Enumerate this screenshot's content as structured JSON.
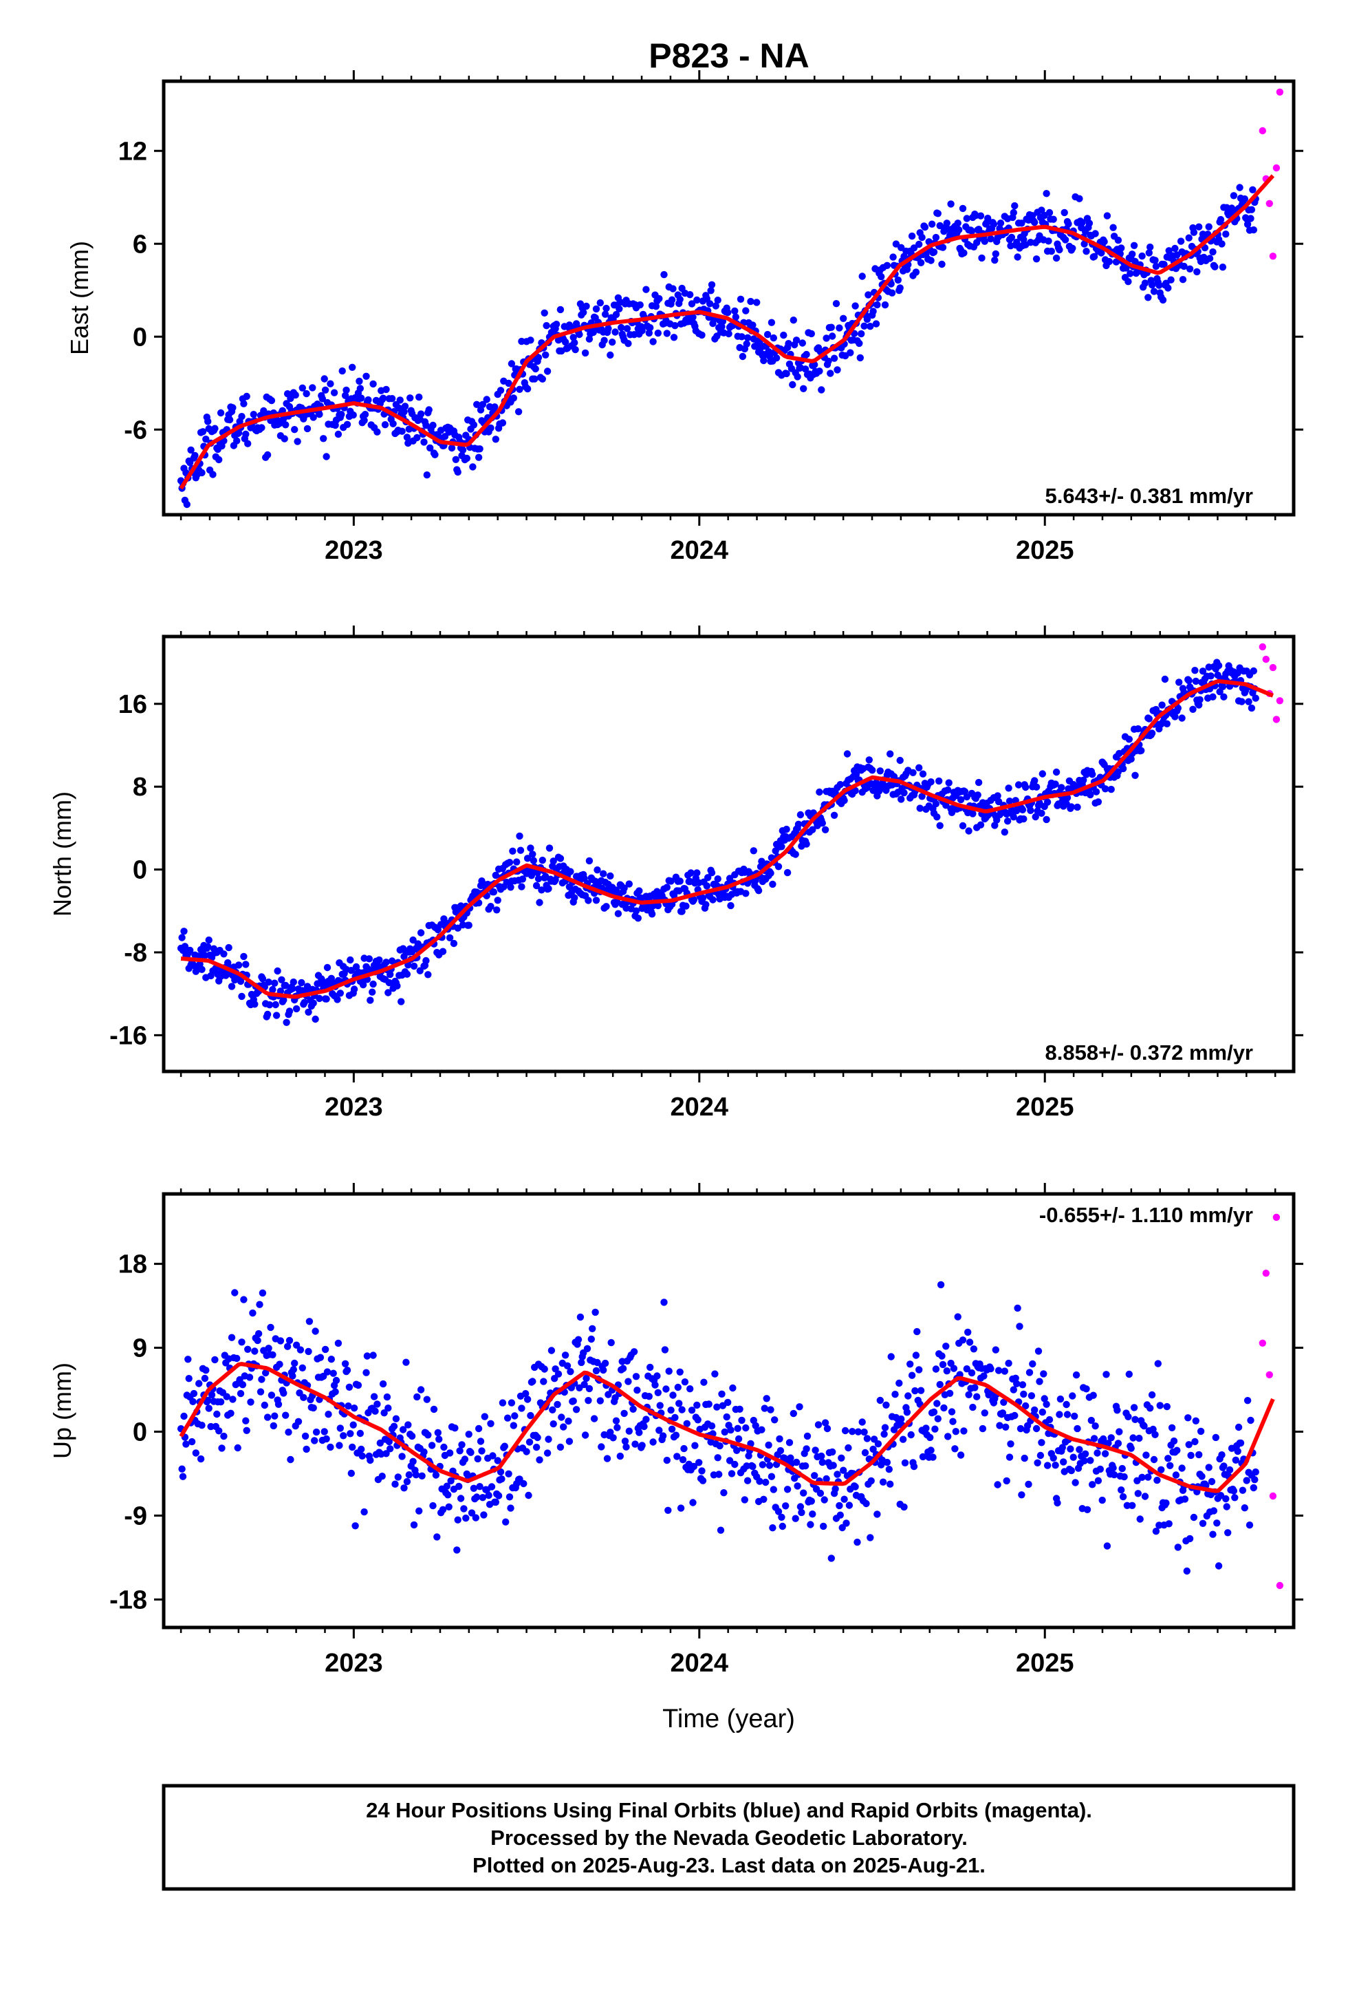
{
  "chart_data": [
    {
      "type": "scatter",
      "title": "P823 - NA",
      "ylabel": "East (mm)",
      "xlim": [
        2022.45,
        2025.72
      ],
      "ylim": [
        -11.5,
        16.5
      ],
      "yticks": [
        -6,
        0,
        6,
        12
      ],
      "xticks": [
        2023,
        2024,
        2025
      ],
      "xtick_labels": [
        "2023",
        "2024",
        "2025"
      ],
      "rate_text": "5.643+/- 0.381 mm/yr",
      "rate_position": "bottom-right",
      "grid": false,
      "series": [
        {
          "name": "Final Orbits",
          "color": "#0000ff",
          "x": [
            2022.5,
            2022.58,
            2022.67,
            2022.75,
            2022.83,
            2022.92,
            2023.0,
            2023.08,
            2023.17,
            2023.25,
            2023.33,
            2023.42,
            2023.5,
            2023.58,
            2023.67,
            2023.75,
            2023.83,
            2023.92,
            2024.0,
            2024.08,
            2024.17,
            2024.25,
            2024.33,
            2024.42,
            2024.5,
            2024.58,
            2024.67,
            2024.75,
            2024.83,
            2024.92,
            2025.0,
            2025.08,
            2025.17,
            2025.25,
            2025.33,
            2025.42,
            2025.5,
            2025.58
          ],
          "y": [
            -9.5,
            -6.8,
            -5.6,
            -5.2,
            -4.9,
            -4.6,
            -4.3,
            -4.5,
            -5.6,
            -6.7,
            -7.0,
            -4.9,
            -1.6,
            0.0,
            0.6,
            0.9,
            1.1,
            1.4,
            1.6,
            1.2,
            0.1,
            -1.3,
            -1.6,
            -0.2,
            2.3,
            4.6,
            5.9,
            6.4,
            6.6,
            6.9,
            7.1,
            6.7,
            5.7,
            4.6,
            4.1,
            5.3,
            6.8,
            8.4
          ]
        },
        {
          "name": "Rapid Orbits",
          "color": "#ff00ff",
          "x": [
            2025.63,
            2025.64,
            2025.65,
            2025.66,
            2025.67,
            2025.68
          ],
          "y": [
            13.3,
            10.2,
            8.6,
            5.2,
            10.9,
            15.8
          ]
        },
        {
          "name": "Model",
          "type": "line",
          "color": "#ff0000",
          "x": [
            2022.5,
            2022.58,
            2022.67,
            2022.75,
            2022.83,
            2022.92,
            2023.0,
            2023.08,
            2023.17,
            2023.25,
            2023.33,
            2023.42,
            2023.5,
            2023.58,
            2023.67,
            2023.75,
            2023.83,
            2023.92,
            2024.0,
            2024.08,
            2024.17,
            2024.25,
            2024.33,
            2024.42,
            2024.5,
            2024.58,
            2024.67,
            2024.75,
            2024.83,
            2024.92,
            2025.0,
            2025.08,
            2025.17,
            2025.25,
            2025.33,
            2025.42,
            2025.5,
            2025.58,
            2025.66
          ],
          "y": [
            -9.8,
            -7.0,
            -5.8,
            -5.2,
            -4.9,
            -4.6,
            -4.3,
            -4.6,
            -5.7,
            -6.8,
            -7.0,
            -4.8,
            -1.6,
            0.0,
            0.6,
            0.9,
            1.1,
            1.4,
            1.6,
            1.2,
            0.1,
            -1.3,
            -1.6,
            -0.2,
            2.3,
            4.6,
            5.9,
            6.4,
            6.6,
            6.9,
            7.1,
            6.7,
            5.7,
            4.6,
            4.1,
            5.3,
            6.8,
            8.4,
            10.4
          ]
        }
      ]
    },
    {
      "type": "scatter",
      "ylabel": "North (mm)",
      "xlim": [
        2022.45,
        2025.72
      ],
      "ylim": [
        -19.5,
        22.5
      ],
      "yticks": [
        -16,
        -8,
        0,
        8,
        16
      ],
      "xticks": [
        2023,
        2024,
        2025
      ],
      "xtick_labels": [
        "2023",
        "2024",
        "2025"
      ],
      "rate_text": "8.858+/- 0.372 mm/yr",
      "rate_position": "bottom-right",
      "grid": false,
      "series": [
        {
          "name": "Final Orbits",
          "color": "#0000ff",
          "x": [
            2022.5,
            2022.58,
            2022.67,
            2022.75,
            2022.83,
            2022.92,
            2023.0,
            2023.08,
            2023.17,
            2023.25,
            2023.33,
            2023.42,
            2023.5,
            2023.58,
            2023.67,
            2023.75,
            2023.83,
            2023.92,
            2024.0,
            2024.08,
            2024.17,
            2024.25,
            2024.33,
            2024.42,
            2024.5,
            2024.58,
            2024.67,
            2024.75,
            2024.83,
            2024.92,
            2025.0,
            2025.08,
            2025.17,
            2025.25,
            2025.33,
            2025.42,
            2025.5,
            2025.58
          ],
          "y": [
            -8.4,
            -8.6,
            -10.0,
            -12.0,
            -12.3,
            -11.7,
            -10.6,
            -9.8,
            -8.6,
            -6.4,
            -3.6,
            -1.0,
            0.4,
            -0.3,
            -1.6,
            -2.6,
            -3.2,
            -3.0,
            -2.3,
            -1.7,
            -0.5,
            1.7,
            4.9,
            7.6,
            8.9,
            8.5,
            7.2,
            6.2,
            5.6,
            6.3,
            7.0,
            7.4,
            8.6,
            11.6,
            14.8,
            17.0,
            18.2,
            17.9
          ]
        },
        {
          "name": "Rapid Orbits",
          "color": "#ff00ff",
          "x": [
            2025.63,
            2025.64,
            2025.65,
            2025.66,
            2025.67,
            2025.68
          ],
          "y": [
            21.5,
            20.3,
            17.0,
            19.5,
            14.5,
            16.3
          ]
        },
        {
          "name": "Model",
          "type": "line",
          "color": "#ff0000",
          "x": [
            2022.5,
            2022.58,
            2022.67,
            2022.75,
            2022.83,
            2022.92,
            2023.0,
            2023.08,
            2023.17,
            2023.25,
            2023.33,
            2023.42,
            2023.5,
            2023.58,
            2023.67,
            2023.75,
            2023.83,
            2023.92,
            2024.0,
            2024.08,
            2024.17,
            2024.25,
            2024.33,
            2024.42,
            2024.5,
            2024.58,
            2024.67,
            2024.75,
            2024.83,
            2024.92,
            2025.0,
            2025.08,
            2025.17,
            2025.25,
            2025.33,
            2025.42,
            2025.5,
            2025.58,
            2025.66
          ],
          "y": [
            -8.6,
            -8.8,
            -10.1,
            -12.0,
            -12.3,
            -11.7,
            -10.6,
            -9.8,
            -8.6,
            -6.4,
            -3.6,
            -1.0,
            0.4,
            -0.3,
            -1.6,
            -2.6,
            -3.2,
            -3.0,
            -2.3,
            -1.7,
            -0.5,
            1.7,
            4.9,
            7.6,
            8.9,
            8.5,
            7.2,
            6.2,
            5.6,
            6.3,
            7.0,
            7.4,
            8.6,
            11.6,
            14.8,
            17.0,
            18.2,
            17.9,
            16.8
          ]
        }
      ]
    },
    {
      "type": "scatter",
      "ylabel": "Up (mm)",
      "xlabel": "Time (year)",
      "xlim": [
        2022.45,
        2025.72
      ],
      "ylim": [
        -21,
        25.5
      ],
      "yticks": [
        -18,
        -9,
        0,
        9,
        18
      ],
      "xticks": [
        2023,
        2024,
        2025
      ],
      "xtick_labels": [
        "2023",
        "2024",
        "2025"
      ],
      "rate_text": "-0.655+/- 1.110 mm/yr",
      "rate_position": "top-right",
      "grid": false,
      "series": [
        {
          "name": "Final Orbits",
          "color": "#0000ff",
          "x": [
            2022.5,
            2022.58,
            2022.67,
            2022.75,
            2022.83,
            2022.92,
            2023.0,
            2023.08,
            2023.17,
            2023.25,
            2023.33,
            2023.42,
            2023.5,
            2023.58,
            2023.67,
            2023.75,
            2023.83,
            2023.92,
            2024.0,
            2024.08,
            2024.17,
            2024.25,
            2024.33,
            2024.42,
            2024.5,
            2024.58,
            2024.67,
            2024.75,
            2024.83,
            2024.92,
            2025.0,
            2025.08,
            2025.17,
            2025.25,
            2025.33,
            2025.42,
            2025.5,
            2025.58
          ],
          "y": [
            -0.5,
            4.5,
            7.3,
            6.8,
            5.2,
            3.6,
            1.6,
            0.2,
            -2.2,
            -4.2,
            -5.3,
            -3.9,
            0.2,
            4.0,
            6.4,
            4.9,
            2.7,
            1.0,
            -0.3,
            -1.0,
            -2.0,
            -3.5,
            -5.5,
            -5.6,
            -3.3,
            0.0,
            3.5,
            5.8,
            5.0,
            2.8,
            0.5,
            -0.8,
            -1.6,
            -2.5,
            -4.6,
            -5.9,
            -6.4,
            -3.5
          ]
        },
        {
          "name": "Rapid Orbits",
          "color": "#ff00ff",
          "x": [
            2025.63,
            2025.64,
            2025.65,
            2025.66,
            2025.67,
            2025.68
          ],
          "y": [
            9.5,
            17.0,
            6.1,
            -6.9,
            23.0,
            -16.5
          ]
        },
        {
          "name": "Model",
          "type": "line",
          "color": "#ff0000",
          "x": [
            2022.5,
            2022.58,
            2022.67,
            2022.75,
            2022.83,
            2022.92,
            2023.0,
            2023.08,
            2023.17,
            2023.25,
            2023.33,
            2023.42,
            2023.5,
            2023.58,
            2023.67,
            2023.75,
            2023.83,
            2023.92,
            2024.0,
            2024.08,
            2024.17,
            2024.25,
            2024.33,
            2024.42,
            2024.5,
            2024.58,
            2024.67,
            2024.75,
            2024.83,
            2024.92,
            2025.0,
            2025.08,
            2025.17,
            2025.25,
            2025.33,
            2025.42,
            2025.5,
            2025.58,
            2025.66
          ],
          "y": [
            -0.5,
            4.5,
            7.3,
            6.8,
            5.2,
            3.6,
            1.6,
            0.2,
            -2.2,
            -4.2,
            -5.3,
            -3.9,
            0.2,
            4.0,
            6.4,
            4.9,
            2.7,
            1.0,
            -0.3,
            -1.0,
            -2.0,
            -3.5,
            -5.5,
            -5.6,
            -3.3,
            0.0,
            3.5,
            5.8,
            5.0,
            2.8,
            0.5,
            -0.8,
            -1.6,
            -2.5,
            -4.6,
            -5.9,
            -6.4,
            -3.5,
            3.5
          ]
        }
      ]
    }
  ],
  "footer": {
    "line1": "24 Hour Positions Using Final Orbits (blue) and Rapid Orbits (magenta).",
    "line2": "Processed by the Nevada Geodetic Laboratory.",
    "line3": "Plotted on 2025-Aug-23. Last data on 2025-Aug-21."
  }
}
